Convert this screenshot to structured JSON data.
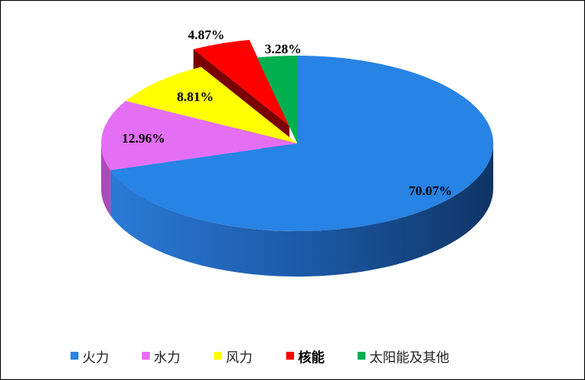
{
  "chart_data": {
    "type": "pie",
    "style": "3d-exploded",
    "start": "12 o'clock, clockwise",
    "legend_position": "bottom",
    "slices": [
      {
        "name": "火力",
        "value": 70.07,
        "label": "70.07%",
        "color": "#2783E4",
        "side": "#1a4f8f",
        "bold": false,
        "exploded": false
      },
      {
        "name": "水力",
        "value": 12.96,
        "label": "12.96%",
        "color": "#E46EF4",
        "side": "#a94cb8",
        "bold": false,
        "exploded": false
      },
      {
        "name": "风力",
        "value": 8.81,
        "label": "8.81%",
        "color": "#FFFF00",
        "side": "#b0b000",
        "bold": false,
        "exploded": false
      },
      {
        "name": "核能",
        "value": 4.87,
        "label": "4.87%",
        "color": "#FF0000",
        "side": "#7a0000",
        "bold": true,
        "exploded": true
      },
      {
        "name": "太阳能及其他",
        "value": 3.28,
        "label": "3.28%",
        "color": "#00B050",
        "side": "#005a28",
        "bold": false,
        "exploded": false
      }
    ]
  }
}
